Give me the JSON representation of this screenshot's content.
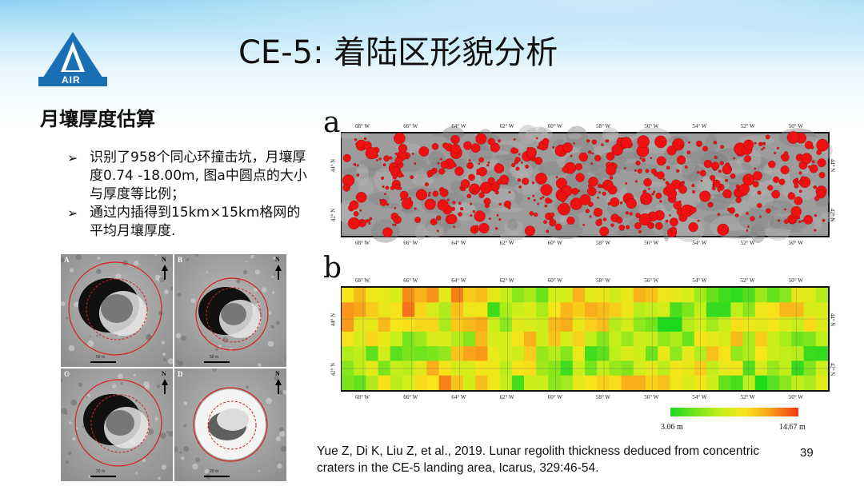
{
  "slide": {
    "logo_text": "AIR",
    "title": "CE-5: 着陆区形貌分析",
    "section_title": "月壤厚度估算",
    "bullet_marker": "➢",
    "bullets": [
      "识别了958个同心环撞击坑，月壤厚度0.74 -18.00m, 图a中圆点的大小与厚度等比例；",
      "通过内插得到15km×15km格网的平均月壤厚度."
    ],
    "page_number": "39",
    "citation": "Yue Z, Di K, Liu Z, et al., 2019. Lunar regolith thickness deduced from concentric craters in the CE-5 landing area, Icarus, 329:46-54."
  },
  "crater_panels": [
    {
      "letter": "A",
      "north": "N",
      "scale": "50 m"
    },
    {
      "letter": "B",
      "north": "N",
      "scale": "50 m"
    },
    {
      "letter": "C",
      "north": "N",
      "scale": "20 m"
    },
    {
      "letter": "D",
      "north": "N",
      "scale": "20 m"
    }
  ],
  "map_a": {
    "letter": "a",
    "lon_labels": [
      "68° W",
      "66° W",
      "64° W",
      "62° W",
      "60° W",
      "58° W",
      "56° W",
      "54° W",
      "52° W",
      "50° W"
    ],
    "lat_labels": [
      "44° N",
      "42° N"
    ],
    "dot_color": "#ee1111"
  },
  "map_b": {
    "letter": "b",
    "lon_labels": [
      "68° W",
      "66° W",
      "64° W",
      "62° W",
      "60° W",
      "58° W",
      "56° W",
      "54° W",
      "52° W",
      "50° W"
    ],
    "lat_labels": [
      "44° N",
      "42° N"
    ]
  },
  "colorbar": {
    "min_label": "3.06 m",
    "max_label": "14.67 m"
  },
  "colors": {
    "accent_blue": "#1b6fb5",
    "crater_ring": "#d42020",
    "map_frame": "#111111"
  }
}
